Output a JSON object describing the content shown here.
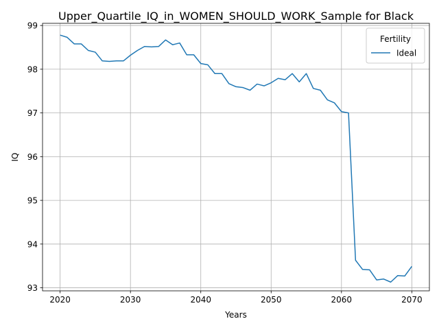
{
  "chart_data": {
    "type": "line",
    "title": "Upper_Quartile_IQ_in_WOMEN_SHOULD_WORK_Sample for Black",
    "xlabel": "Years",
    "ylabel": "IQ",
    "xlim": [
      2017.5,
      2072.5
    ],
    "ylim": [
      92.93,
      99.05
    ],
    "x_ticks": [
      2020,
      2030,
      2040,
      2050,
      2060,
      2070
    ],
    "y_ticks": [
      93,
      94,
      95,
      96,
      97,
      98,
      99
    ],
    "grid": true,
    "legend": {
      "title": "Fertility",
      "placement": "top-right"
    },
    "series": [
      {
        "name": "Ideal",
        "color": "#1f77b4",
        "x": [
          2020,
          2021,
          2022,
          2023,
          2024,
          2025,
          2026,
          2027,
          2028,
          2029,
          2030,
          2031,
          2032,
          2033,
          2034,
          2035,
          2036,
          2037,
          2038,
          2039,
          2040,
          2041,
          2042,
          2043,
          2044,
          2045,
          2046,
          2047,
          2048,
          2049,
          2050,
          2051,
          2052,
          2053,
          2054,
          2055,
          2056,
          2057,
          2058,
          2059,
          2060,
          2061,
          2062,
          2063,
          2064,
          2065,
          2066,
          2067,
          2068,
          2069,
          2070
        ],
        "values": [
          98.78,
          98.73,
          98.58,
          98.58,
          98.43,
          98.39,
          98.19,
          98.18,
          98.19,
          98.19,
          98.32,
          98.43,
          98.52,
          98.51,
          98.52,
          98.67,
          98.56,
          98.6,
          98.33,
          98.33,
          98.13,
          98.1,
          97.9,
          97.9,
          97.67,
          97.6,
          97.58,
          97.52,
          97.66,
          97.62,
          97.69,
          97.79,
          97.76,
          97.9,
          97.71,
          97.9,
          97.56,
          97.52,
          97.3,
          97.23,
          97.03,
          97.0,
          93.63,
          93.42,
          93.41,
          93.18,
          93.2,
          93.13,
          93.28,
          93.27,
          93.49
        ]
      }
    ]
  }
}
